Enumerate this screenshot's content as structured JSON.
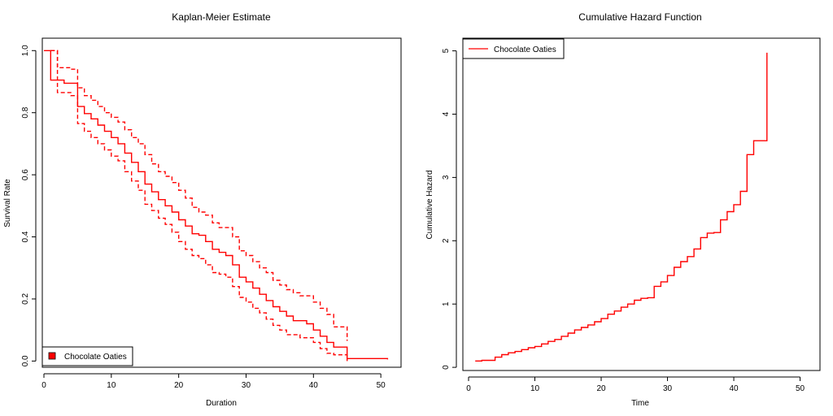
{
  "colors": {
    "series": "#ff0000",
    "axis": "#000000"
  },
  "chart_data": [
    {
      "type": "line",
      "title": "Kaplan-Meier Estimate",
      "xlabel": "Duration",
      "ylabel": "Survival Rate",
      "xlim": [
        0,
        53
      ],
      "ylim": [
        -0.02,
        1.04
      ],
      "xticks": [
        "0",
        "10",
        "20",
        "30",
        "40",
        "50"
      ],
      "yticks": [
        "0.0",
        "0.2",
        "0.4",
        "0.6",
        "0.8",
        "1.0"
      ],
      "legend": {
        "placement": "bottom-left",
        "entries": [
          "Chocolate Oaties"
        ],
        "style": "filled-box"
      },
      "series": [
        {
          "name": "Chocolate Oaties",
          "role": "estimate",
          "line": "solid",
          "x": [
            0,
            1,
            3,
            5,
            6,
            7,
            8,
            9,
            10,
            11,
            12,
            13,
            14,
            15,
            16,
            17,
            18,
            19,
            20,
            21,
            22,
            23,
            24,
            25,
            26,
            27,
            28,
            29,
            30,
            31,
            32,
            33,
            34,
            35,
            36,
            37,
            39,
            40,
            41,
            42,
            43,
            45,
            51
          ],
          "y": [
            1.0,
            0.905,
            0.895,
            0.82,
            0.797,
            0.78,
            0.76,
            0.74,
            0.72,
            0.7,
            0.67,
            0.64,
            0.61,
            0.57,
            0.545,
            0.52,
            0.5,
            0.48,
            0.455,
            0.435,
            0.41,
            0.405,
            0.385,
            0.36,
            0.35,
            0.34,
            0.31,
            0.27,
            0.255,
            0.235,
            0.215,
            0.195,
            0.175,
            0.16,
            0.145,
            0.13,
            0.12,
            0.1,
            0.08,
            0.06,
            0.045,
            0.008,
            0.005
          ]
        },
        {
          "role": "upper-ci",
          "line": "dashed",
          "x": [
            1,
            2,
            4,
            5,
            6,
            7,
            8,
            9,
            10,
            11,
            12,
            13,
            14,
            15,
            16,
            17,
            18,
            19,
            20,
            21,
            22,
            23,
            24,
            25,
            26,
            27,
            28,
            29,
            30,
            31,
            32,
            33,
            34,
            35,
            36,
            37,
            38,
            40,
            41,
            42,
            43,
            45
          ],
          "y": [
            1.0,
            0.945,
            0.94,
            0.88,
            0.855,
            0.84,
            0.82,
            0.8,
            0.785,
            0.77,
            0.745,
            0.72,
            0.7,
            0.665,
            0.635,
            0.61,
            0.595,
            0.575,
            0.55,
            0.525,
            0.495,
            0.48,
            0.47,
            0.445,
            0.43,
            0.43,
            0.4,
            0.355,
            0.34,
            0.32,
            0.3,
            0.285,
            0.26,
            0.245,
            0.23,
            0.22,
            0.21,
            0.19,
            0.17,
            0.15,
            0.11,
            0.065
          ]
        },
        {
          "role": "lower-ci",
          "line": "dashed",
          "x": [
            1,
            2,
            4,
            5,
            6,
            7,
            8,
            9,
            10,
            11,
            12,
            13,
            14,
            15,
            16,
            17,
            18,
            19,
            20,
            21,
            22,
            23,
            24,
            25,
            26,
            27,
            28,
            29,
            30,
            31,
            32,
            33,
            34,
            35,
            36,
            37,
            38,
            40,
            41,
            42,
            43,
            45
          ],
          "y": [
            1.0,
            0.865,
            0.855,
            0.765,
            0.74,
            0.72,
            0.7,
            0.68,
            0.66,
            0.645,
            0.61,
            0.58,
            0.55,
            0.505,
            0.485,
            0.46,
            0.44,
            0.415,
            0.385,
            0.36,
            0.34,
            0.33,
            0.31,
            0.285,
            0.28,
            0.27,
            0.24,
            0.205,
            0.19,
            0.17,
            0.155,
            0.135,
            0.115,
            0.1,
            0.085,
            0.085,
            0.075,
            0.06,
            0.04,
            0.025,
            0.02,
            0.0
          ]
        }
      ]
    },
    {
      "type": "line",
      "title": "Cumulative Hazard Function",
      "xlabel": "Time",
      "ylabel": "Cumulative Hazard",
      "xlim": [
        0,
        53
      ],
      "ylim": [
        -0.05,
        5.2
      ],
      "xticks": [
        "0",
        "10",
        "20",
        "30",
        "40",
        "50"
      ],
      "yticks": [
        "0",
        "1",
        "2",
        "3",
        "4",
        "5"
      ],
      "legend": {
        "placement": "top-left",
        "entries": [
          "Chocolate Oaties"
        ],
        "style": "line"
      },
      "series": [
        {
          "name": "Chocolate Oaties",
          "line": "solid",
          "x": [
            1,
            2,
            4,
            5,
            6,
            7,
            8,
            9,
            10,
            11,
            12,
            13,
            14,
            15,
            16,
            17,
            18,
            19,
            20,
            21,
            22,
            23,
            24,
            25,
            26,
            27,
            28,
            29,
            30,
            31,
            32,
            33,
            34,
            35,
            36,
            37,
            38,
            39,
            40,
            41,
            42,
            43,
            45
          ],
          "y": [
            0.1,
            0.11,
            0.16,
            0.2,
            0.23,
            0.25,
            0.28,
            0.31,
            0.33,
            0.37,
            0.41,
            0.44,
            0.49,
            0.54,
            0.59,
            0.63,
            0.67,
            0.72,
            0.77,
            0.84,
            0.89,
            0.95,
            1.0,
            1.06,
            1.09,
            1.1,
            1.28,
            1.35,
            1.45,
            1.58,
            1.67,
            1.75,
            1.87,
            2.05,
            2.12,
            2.13,
            2.33,
            2.46,
            2.57,
            2.78,
            3.36,
            3.58,
            4.97
          ]
        }
      ]
    }
  ]
}
